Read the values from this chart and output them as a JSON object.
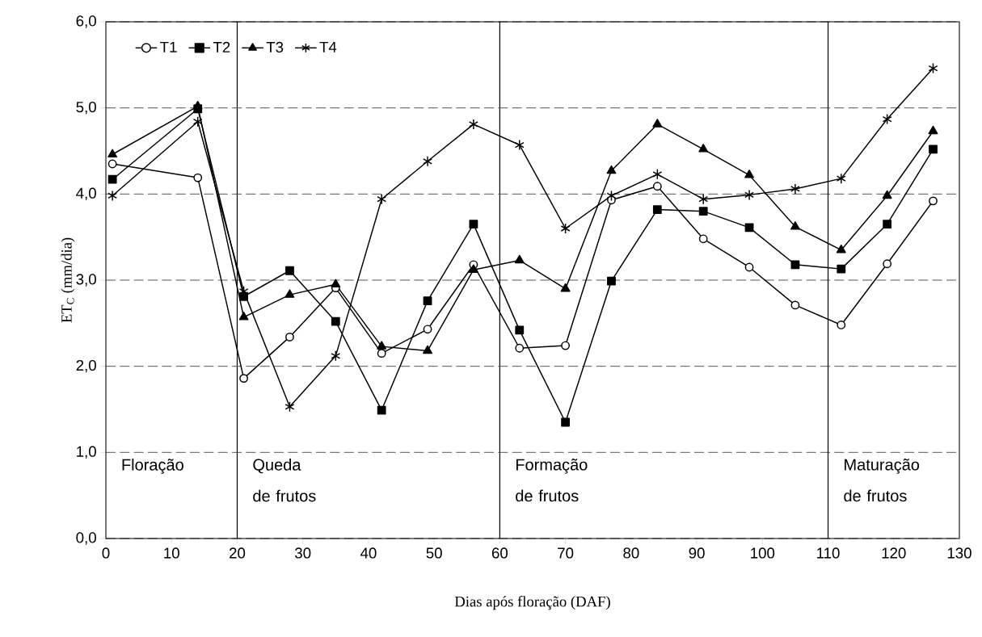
{
  "chart_data": {
    "type": "line",
    "xlabel": "Dias após floração (DAF)",
    "ylabel": "ET$_{C}$ (mm/dia)",
    "x": [
      1,
      14,
      21,
      28,
      35,
      42,
      49,
      56,
      63,
      70,
      77,
      84,
      91,
      98,
      105,
      112,
      119,
      126
    ],
    "series": [
      {
        "name": "T1",
        "color": "#000000",
        "marker": "circle",
        "values": [
          4.35,
          4.19,
          1.86,
          2.34,
          2.91,
          2.15,
          2.43,
          3.18,
          2.21,
          2.24,
          3.93,
          4.09,
          3.48,
          3.15,
          2.71,
          2.48,
          3.19,
          3.92
        ]
      },
      {
        "name": "T2",
        "color": "#000000",
        "marker": "square",
        "values": [
          4.17,
          4.99,
          2.81,
          3.11,
          2.52,
          1.49,
          2.76,
          3.65,
          2.42,
          1.35,
          2.99,
          3.82,
          3.8,
          3.61,
          3.18,
          3.13,
          3.65,
          4.52
        ]
      },
      {
        "name": "T3",
        "color": "#000000",
        "marker": "triangle",
        "values": [
          4.46,
          5.02,
          2.57,
          2.83,
          2.95,
          2.23,
          2.18,
          3.12,
          3.23,
          2.9,
          4.27,
          4.81,
          4.52,
          4.22,
          3.62,
          3.35,
          3.98,
          4.73
        ]
      },
      {
        "name": "T4",
        "color": "#000000",
        "marker": "cross",
        "values": [
          3.98,
          4.84,
          2.87,
          1.53,
          2.12,
          3.94,
          4.38,
          4.81,
          4.57,
          3.6,
          3.98,
          4.23,
          3.94,
          3.99,
          4.06,
          4.18,
          4.87,
          5.46
        ]
      }
    ],
    "xlim": [
      0,
      130
    ],
    "xticks": [
      0,
      10,
      20,
      30,
      40,
      50,
      60,
      70,
      80,
      90,
      100,
      110,
      120,
      130
    ],
    "ylim": [
      0,
      6
    ],
    "yticks": [
      {
        "value": 0,
        "label": "0,0"
      },
      {
        "value": 1,
        "label": "1,0"
      },
      {
        "value": 2,
        "label": "2,0"
      },
      {
        "value": 3,
        "label": "3,0"
      },
      {
        "value": 4,
        "label": "4,0"
      },
      {
        "value": 5,
        "label": "5,0"
      },
      {
        "value": 6,
        "label": "6,0"
      }
    ],
    "grid": "y",
    "legend": "top left",
    "line_style": "solid",
    "ref_lines": [
      {
        "axis": "x",
        "value": 20,
        "color": "#000000"
      },
      {
        "axis": "x",
        "value": 60,
        "color": "#000000"
      },
      {
        "axis": "x",
        "value": 110,
        "color": "#000000"
      }
    ],
    "annotations": [
      "Floração",
      "Queda de frutos",
      "Formação de frutos",
      "Maturação de frutos"
    ]
  }
}
